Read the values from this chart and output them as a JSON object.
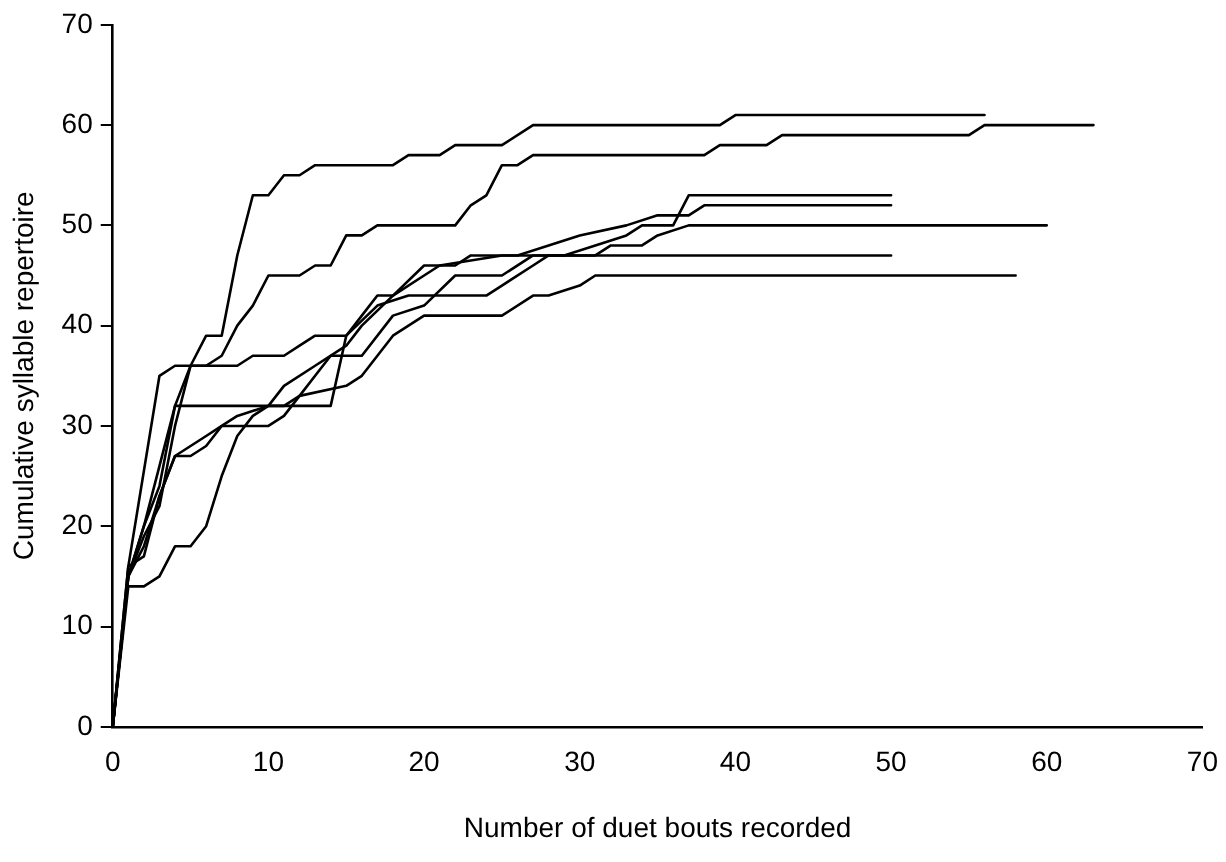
{
  "chart_data": {
    "type": "line",
    "xlabel": "Number of duet bouts recorded",
    "ylabel": "Cumulative syllable repertoire",
    "xlim": [
      0,
      70
    ],
    "xticks": [
      0,
      10,
      20,
      30,
      40,
      50,
      60,
      70
    ],
    "ylim": [
      0,
      70
    ],
    "yticks": [
      0,
      10,
      20,
      30,
      40,
      50,
      60,
      70
    ],
    "grid": false,
    "legend": false,
    "marker": "none",
    "line_style": "solid",
    "series": [
      {
        "color": "#000000",
        "x": [
          0,
          1,
          3,
          4,
          5,
          6,
          7,
          8,
          9,
          10,
          11,
          12,
          13,
          18,
          19,
          21,
          22,
          25,
          27,
          39,
          40,
          56
        ],
        "values": [
          0,
          16,
          35,
          36,
          36,
          39,
          39,
          47,
          53,
          53,
          55,
          55,
          56,
          56,
          57,
          57,
          58,
          58,
          60,
          60,
          61,
          61
        ]
      },
      {
        "color": "#000000",
        "x": [
          0,
          1,
          2,
          3,
          4,
          5,
          6,
          7,
          8,
          9,
          10,
          12,
          13,
          14,
          15,
          16,
          17,
          22,
          23,
          24,
          25,
          26,
          27,
          38,
          39,
          42,
          43,
          55,
          56,
          63
        ],
        "values": [
          0,
          15,
          20,
          26,
          32,
          36,
          36,
          37,
          40,
          42,
          45,
          45,
          46,
          46,
          49,
          49,
          50,
          50,
          52,
          53,
          56,
          56,
          57,
          57,
          58,
          58,
          59,
          59,
          60,
          60
        ]
      },
      {
        "color": "#000000",
        "x": [
          0,
          1,
          2,
          3,
          4,
          5,
          6,
          7,
          8,
          9,
          10,
          11,
          12,
          13,
          14,
          16,
          18,
          20,
          22,
          25,
          27,
          29,
          31,
          33,
          34,
          36,
          37,
          50
        ],
        "values": [
          0,
          14,
          14,
          15,
          18,
          18,
          20,
          25,
          29,
          31,
          32,
          32,
          33,
          35,
          37,
          37,
          41,
          42,
          45,
          45,
          47,
          47,
          48,
          49,
          50,
          50,
          53,
          53
        ]
      },
      {
        "color": "#000000",
        "x": [
          0,
          1,
          2,
          3,
          4,
          5,
          6,
          7,
          8,
          10,
          11,
          13,
          15,
          16,
          18,
          20,
          21,
          25,
          26,
          28,
          30,
          33,
          35,
          37,
          38,
          50
        ],
        "values": [
          0,
          16,
          17,
          23,
          27,
          28,
          29,
          30,
          31,
          32,
          34,
          36,
          38,
          40,
          43,
          45,
          46,
          47,
          47,
          48,
          49,
          50,
          51,
          51,
          52,
          52
        ]
      },
      {
        "color": "#000000",
        "x": [
          0,
          1,
          2,
          3,
          4,
          14,
          15,
          16,
          17,
          18,
          20,
          22,
          23,
          31,
          32,
          34,
          35,
          37,
          60
        ],
        "values": [
          0,
          15,
          20,
          24,
          32,
          32,
          39,
          41,
          43,
          43,
          46,
          46,
          47,
          47,
          48,
          48,
          49,
          50,
          50
        ]
      },
      {
        "color": "#000000",
        "x": [
          0,
          1,
          2,
          3,
          4,
          5,
          7,
          8,
          9,
          11,
          12,
          13,
          15,
          17,
          19,
          24,
          25,
          27,
          28,
          50
        ],
        "values": [
          0,
          15,
          19,
          22,
          30,
          36,
          36,
          36,
          37,
          37,
          38,
          39,
          39,
          42,
          43,
          43,
          44,
          46,
          47,
          47
        ]
      },
      {
        "color": "#000000",
        "x": [
          0,
          1,
          2,
          3,
          4,
          5,
          6,
          7,
          10,
          11,
          12,
          15,
          16,
          17,
          18,
          19,
          20,
          25,
          27,
          28,
          30,
          31,
          58
        ],
        "values": [
          0,
          15,
          18,
          23,
          27,
          27,
          28,
          30,
          30,
          31,
          33,
          34,
          35,
          37,
          39,
          40,
          41,
          41,
          43,
          43,
          44,
          45,
          45
        ]
      }
    ]
  }
}
